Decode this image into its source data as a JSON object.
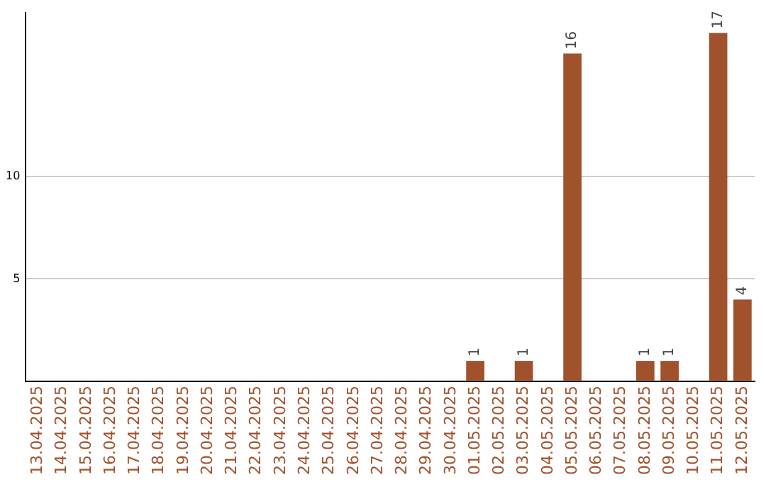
{
  "chart_data": {
    "type": "bar",
    "categories": [
      "13.04.2025",
      "14.04.2025",
      "15.04.2025",
      "16.04.2025",
      "17.04.2025",
      "18.04.2025",
      "19.04.2025",
      "20.04.2025",
      "21.04.2025",
      "22.04.2025",
      "23.04.2025",
      "24.04.2025",
      "25.04.2025",
      "26.04.2025",
      "27.04.2025",
      "28.04.2025",
      "29.04.2025",
      "30.04.2025",
      "01.05.2025",
      "02.05.2025",
      "03.05.2025",
      "04.05.2025",
      "05.05.2025",
      "06.05.2025",
      "07.05.2025",
      "08.05.2025",
      "09.05.2025",
      "10.05.2025",
      "11.05.2025",
      "12.05.2025"
    ],
    "values": [
      0,
      0,
      0,
      0,
      0,
      0,
      0,
      0,
      0,
      0,
      0,
      0,
      0,
      0,
      0,
      0,
      0,
      0,
      1,
      0,
      1,
      0,
      16,
      0,
      0,
      1,
      1,
      0,
      17,
      4
    ],
    "value_labels": [
      null,
      null,
      null,
      null,
      null,
      null,
      null,
      null,
      null,
      null,
      null,
      null,
      null,
      null,
      null,
      null,
      null,
      null,
      "1",
      null,
      "1",
      null,
      "16",
      null,
      null,
      "1",
      "1",
      null,
      "17",
      "4"
    ],
    "color": "#a0522d",
    "ylim": [
      0,
      18
    ],
    "yticks": [
      5,
      10
    ],
    "grid": "y",
    "legend": false
  }
}
